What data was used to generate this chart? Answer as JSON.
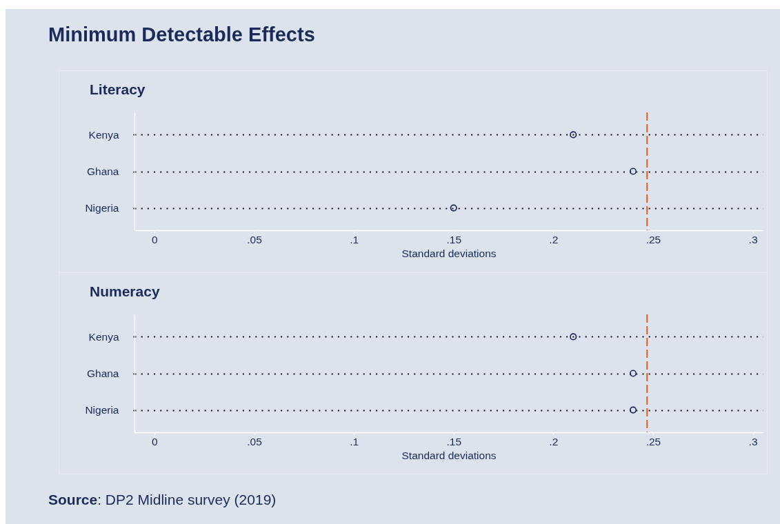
{
  "chart_data": [
    {
      "type": "scatter",
      "title": "Minimum Detectable Effects",
      "subtitle": "Literacy",
      "orientation": "horizontal",
      "categories": [
        "Kenya",
        "Ghana",
        "Nigeria"
      ],
      "values": [
        0.21,
        0.24,
        0.15
      ],
      "color": "#1a2a5a",
      "marker": "circle",
      "xlabel": "Standard deviations",
      "xlim": [
        -0.01,
        0.305
      ],
      "xticks": [
        0,
        {
          "value": 0.05,
          "label": ".05"
        },
        {
          "value": 0.1,
          "label": ".1"
        },
        {
          "value": 0.15,
          "label": ".15"
        },
        {
          "value": 0.2,
          "label": ".2"
        },
        {
          "value": 0.25,
          "label": ".25"
        },
        {
          "value": 0.3,
          "label": ".3"
        }
      ],
      "grid": "y",
      "ref_lines": [
        {
          "axis": "x",
          "value": 0.247,
          "color": "#e85a1e",
          "line_style": "dashed"
        }
      ]
    },
    {
      "type": "scatter",
      "subtitle": "Numeracy",
      "orientation": "horizontal",
      "categories": [
        "Kenya",
        "Ghana",
        "Nigeria"
      ],
      "values": [
        0.21,
        0.24,
        0.24
      ],
      "color": "#1a2a5a",
      "marker": "circle",
      "xlabel": "Standard deviations",
      "xlim": [
        -0.01,
        0.305
      ],
      "xticks": [
        0,
        {
          "value": 0.05,
          "label": ".05"
        },
        {
          "value": 0.1,
          "label": ".1"
        },
        {
          "value": 0.15,
          "label": ".15"
        },
        {
          "value": 0.2,
          "label": ".2"
        },
        {
          "value": 0.25,
          "label": ".25"
        },
        {
          "value": 0.3,
          "label": ".3"
        }
      ],
      "grid": "y",
      "ref_lines": [
        {
          "axis": "x",
          "value": 0.247,
          "color": "#e85a1e",
          "line_style": "dashed"
        }
      ],
      "annotations": [
        "Source: DP2 Midline survey (2019)"
      ]
    }
  ]
}
